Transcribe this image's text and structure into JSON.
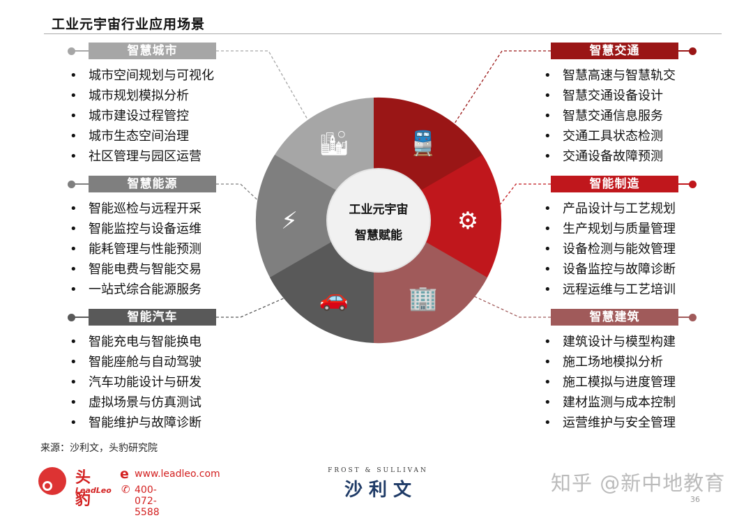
{
  "title": "工业元宇宙行业应用场景",
  "center": {
    "line1": "工业元宇宙",
    "line2": "智慧赋能"
  },
  "sections": {
    "city": {
      "title": "智慧城市",
      "color": "#a6a6a6",
      "icon": "city-buildings-icon",
      "items": [
        "城市空间规划与可视化",
        "城市规划模拟分析",
        "城市建设过程管控",
        "城市生态空间治理",
        "社区管理与园区运营"
      ]
    },
    "energy": {
      "title": "智慧能源",
      "color": "#7f7f7f",
      "icon": "lightning-bolt-icon",
      "items": [
        "智能巡检与远程开采",
        "智能监控与设备运维",
        "能耗管理与性能预测",
        "智能电费与智能交易",
        "一站式综合能源服务"
      ]
    },
    "car": {
      "title": "智能汽车",
      "color": "#595959",
      "icon": "car-icon",
      "items": [
        "智能充电与智能换电",
        "智能座舱与自动驾驶",
        "汽车功能设计与研发",
        "虚拟场景与仿真测试",
        "智能维护与故障诊断"
      ]
    },
    "transport": {
      "title": "智慧交通",
      "color": "#9a1616",
      "icon": "train-icon",
      "items": [
        "智慧高速与智慧轨交",
        "智慧交通设备设计",
        "智慧交通信息服务",
        "交通工具状态检测",
        "交通设备故障预测"
      ]
    },
    "manufacturing": {
      "title": "智能制造",
      "color": "#c0171c",
      "icon": "robot-arm-assembly-icon",
      "items": [
        "产品设计与工艺规划",
        "生产规划与质量管理",
        "设备检测与能效管理",
        "设备监控与故障诊断",
        "远程运维与工艺培训"
      ]
    },
    "building": {
      "title": "智慧建筑",
      "color": "#a05a5a",
      "icon": "building-icon",
      "items": [
        "建筑设计与模型构建",
        "施工场地模拟分析",
        "施工模拟与进度管理",
        "建材监测与成本控制",
        "运营维护与安全管理"
      ]
    }
  },
  "source": "来源：沙利文，头豹研究院",
  "footer": {
    "leadleo_cn": "头豹",
    "leadleo_en": "LeadLeo",
    "website": "www.leadleo.com",
    "phone": "400-072-5588",
    "frost_en": "FROST & SULLIVAN",
    "frost_cn": "沙 利 文",
    "watermark": "知乎 @新中地教育",
    "page": "36"
  }
}
